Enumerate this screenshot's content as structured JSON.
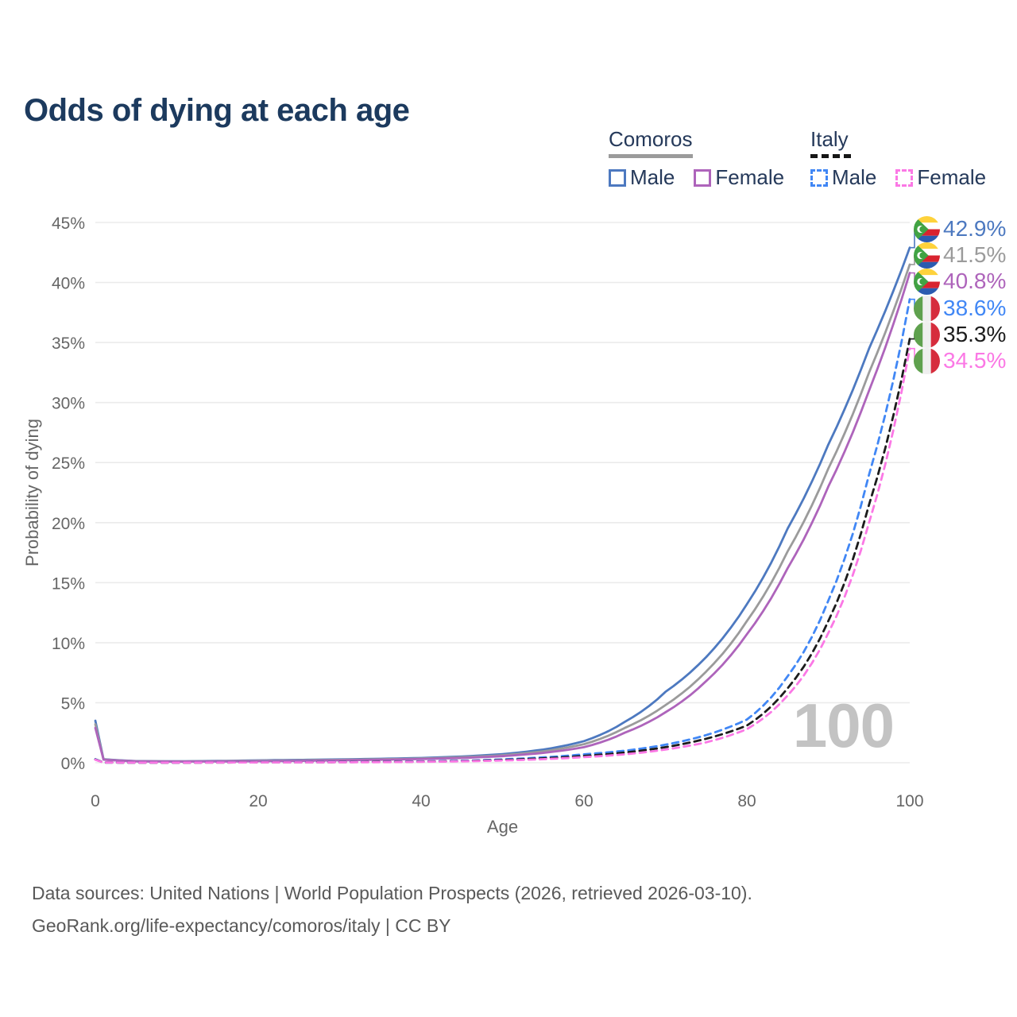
{
  "title": "Odds of dying at each age",
  "legend": {
    "groups": [
      {
        "label": "Comoros",
        "line_style": "solid",
        "underline_color": "#9b9b9b",
        "items": [
          {
            "label": "Male",
            "color": "#4d79c0"
          },
          {
            "label": "Female",
            "color": "#ae64bb"
          }
        ]
      },
      {
        "label": "Italy",
        "line_style": "dashed",
        "underline_color": "#161616",
        "items": [
          {
            "label": "Male",
            "color": "#4187f5"
          },
          {
            "label": "Female",
            "color": "#fb78e5"
          }
        ]
      }
    ]
  },
  "watermark_age": "100",
  "sources": {
    "line1": "Data sources: United Nations | World Population Prospects (2026, retrieved 2026-03-10).",
    "line2": "GeoRank.org/life-expectancy/comoros/italy | CC BY"
  },
  "chart_data": {
    "type": "line",
    "title": "Odds of dying at each age",
    "xlabel": "Age",
    "ylabel": "Probability of dying",
    "xlim": [
      0,
      100
    ],
    "ylim": [
      0,
      45
    ],
    "grid": "horizontal",
    "legend_position": "top-right",
    "x_ticks": [
      {
        "v": 0,
        "label": "0"
      },
      {
        "v": 20,
        "label": "20"
      },
      {
        "v": 40,
        "label": "40"
      },
      {
        "v": 60,
        "label": "60"
      },
      {
        "v": 80,
        "label": "80"
      },
      {
        "v": 100,
        "label": "100"
      }
    ],
    "y_ticks": [
      {
        "v": 0,
        "label": "0%"
      },
      {
        "v": 5,
        "label": "5%"
      },
      {
        "v": 10,
        "label": "10%"
      },
      {
        "v": 15,
        "label": "15%"
      },
      {
        "v": 20,
        "label": "20%"
      },
      {
        "v": 25,
        "label": "25%"
      },
      {
        "v": 30,
        "label": "30%"
      },
      {
        "v": 35,
        "label": "35%"
      },
      {
        "v": 40,
        "label": "40%"
      },
      {
        "v": 45,
        "label": "45%"
      }
    ],
    "series": [
      {
        "name": "Comoros Male",
        "country": "Comoros",
        "sex": "Male",
        "color": "#4d79c0",
        "dash": "solid",
        "flag": "comoros",
        "end_label": "42.9%",
        "end_value": 42.9,
        "points": [
          [
            0,
            3.5
          ],
          [
            1,
            0.3
          ],
          [
            5,
            0.14
          ],
          [
            10,
            0.12
          ],
          [
            15,
            0.15
          ],
          [
            20,
            0.2
          ],
          [
            25,
            0.24
          ],
          [
            30,
            0.28
          ],
          [
            35,
            0.33
          ],
          [
            40,
            0.4
          ],
          [
            45,
            0.52
          ],
          [
            50,
            0.72
          ],
          [
            55,
            1.1
          ],
          [
            60,
            1.8
          ],
          [
            65,
            3.4
          ],
          [
            70,
            5.9
          ],
          [
            75,
            8.8
          ],
          [
            80,
            13.2
          ],
          [
            85,
            19.5
          ],
          [
            90,
            26.5
          ],
          [
            95,
            34.5
          ],
          [
            100,
            42.9
          ]
        ]
      },
      {
        "name": "Comoros",
        "country": "Comoros",
        "sex": "Both",
        "color": "#9b9b9b",
        "dash": "solid",
        "flag": "comoros",
        "end_label": "41.5%",
        "end_value": 41.5,
        "points": [
          [
            0,
            3.2
          ],
          [
            1,
            0.28
          ],
          [
            5,
            0.13
          ],
          [
            10,
            0.11
          ],
          [
            15,
            0.13
          ],
          [
            20,
            0.17
          ],
          [
            25,
            0.2
          ],
          [
            30,
            0.24
          ],
          [
            35,
            0.29
          ],
          [
            40,
            0.35
          ],
          [
            45,
            0.46
          ],
          [
            50,
            0.63
          ],
          [
            55,
            0.95
          ],
          [
            60,
            1.55
          ],
          [
            65,
            2.9
          ],
          [
            70,
            4.8
          ],
          [
            75,
            7.6
          ],
          [
            80,
            11.8
          ],
          [
            85,
            17.6
          ],
          [
            90,
            24.5
          ],
          [
            95,
            32.5
          ],
          [
            100,
            41.5
          ]
        ]
      },
      {
        "name": "Comoros Female",
        "country": "Comoros",
        "sex": "Female",
        "color": "#ae64bb",
        "dash": "solid",
        "flag": "comoros",
        "end_label": "40.8%",
        "end_value": 40.8,
        "points": [
          [
            0,
            2.9
          ],
          [
            1,
            0.26
          ],
          [
            5,
            0.12
          ],
          [
            10,
            0.1
          ],
          [
            15,
            0.11
          ],
          [
            20,
            0.13
          ],
          [
            25,
            0.16
          ],
          [
            30,
            0.2
          ],
          [
            35,
            0.25
          ],
          [
            40,
            0.31
          ],
          [
            45,
            0.4
          ],
          [
            50,
            0.55
          ],
          [
            55,
            0.82
          ],
          [
            60,
            1.3
          ],
          [
            65,
            2.5
          ],
          [
            70,
            4.2
          ],
          [
            75,
            6.8
          ],
          [
            80,
            10.7
          ],
          [
            85,
            16.2
          ],
          [
            90,
            23.0
          ],
          [
            95,
            31.0
          ],
          [
            100,
            40.8
          ]
        ]
      },
      {
        "name": "Italy Male",
        "country": "Italy",
        "sex": "Male",
        "color": "#4187f5",
        "dash": "dashed",
        "flag": "italy",
        "end_label": "38.6%",
        "end_value": 38.6,
        "points": [
          [
            0,
            0.3
          ],
          [
            1,
            0.02
          ],
          [
            5,
            0.01
          ],
          [
            10,
            0.01
          ],
          [
            15,
            0.03
          ],
          [
            20,
            0.05
          ],
          [
            25,
            0.05
          ],
          [
            30,
            0.06
          ],
          [
            35,
            0.08
          ],
          [
            40,
            0.11
          ],
          [
            45,
            0.17
          ],
          [
            50,
            0.28
          ],
          [
            55,
            0.45
          ],
          [
            60,
            0.7
          ],
          [
            65,
            1.0
          ],
          [
            70,
            1.5
          ],
          [
            75,
            2.3
          ],
          [
            80,
            3.6
          ],
          [
            85,
            7.2
          ],
          [
            90,
            13.5
          ],
          [
            95,
            24.0
          ],
          [
            100,
            38.6
          ]
        ]
      },
      {
        "name": "Italy",
        "country": "Italy",
        "sex": "Both",
        "color": "#1c1c1c",
        "dash": "dashed",
        "flag": "italy",
        "end_label": "35.3%",
        "end_value": 35.3,
        "points": [
          [
            0,
            0.27
          ],
          [
            1,
            0.02
          ],
          [
            5,
            0.01
          ],
          [
            10,
            0.01
          ],
          [
            15,
            0.02
          ],
          [
            20,
            0.04
          ],
          [
            25,
            0.04
          ],
          [
            30,
            0.05
          ],
          [
            35,
            0.07
          ],
          [
            40,
            0.09
          ],
          [
            45,
            0.14
          ],
          [
            50,
            0.23
          ],
          [
            55,
            0.37
          ],
          [
            60,
            0.57
          ],
          [
            65,
            0.85
          ],
          [
            70,
            1.3
          ],
          [
            75,
            2.0
          ],
          [
            80,
            3.1
          ],
          [
            85,
            6.2
          ],
          [
            90,
            11.8
          ],
          [
            95,
            21.5
          ],
          [
            100,
            35.3
          ]
        ]
      },
      {
        "name": "Italy Female",
        "country": "Italy",
        "sex": "Female",
        "color": "#fb78e5",
        "dash": "dashed",
        "flag": "italy",
        "end_label": "34.5%",
        "end_value": 34.5,
        "points": [
          [
            0,
            0.25
          ],
          [
            1,
            0.02
          ],
          [
            5,
            0.01
          ],
          [
            10,
            0.01
          ],
          [
            15,
            0.02
          ],
          [
            20,
            0.03
          ],
          [
            25,
            0.03
          ],
          [
            30,
            0.04
          ],
          [
            35,
            0.05
          ],
          [
            40,
            0.08
          ],
          [
            45,
            0.12
          ],
          [
            50,
            0.19
          ],
          [
            55,
            0.3
          ],
          [
            60,
            0.47
          ],
          [
            65,
            0.7
          ],
          [
            70,
            1.1
          ],
          [
            75,
            1.7
          ],
          [
            80,
            2.8
          ],
          [
            85,
            5.6
          ],
          [
            90,
            10.8
          ],
          [
            95,
            20.0
          ],
          [
            100,
            34.5
          ]
        ]
      }
    ]
  }
}
